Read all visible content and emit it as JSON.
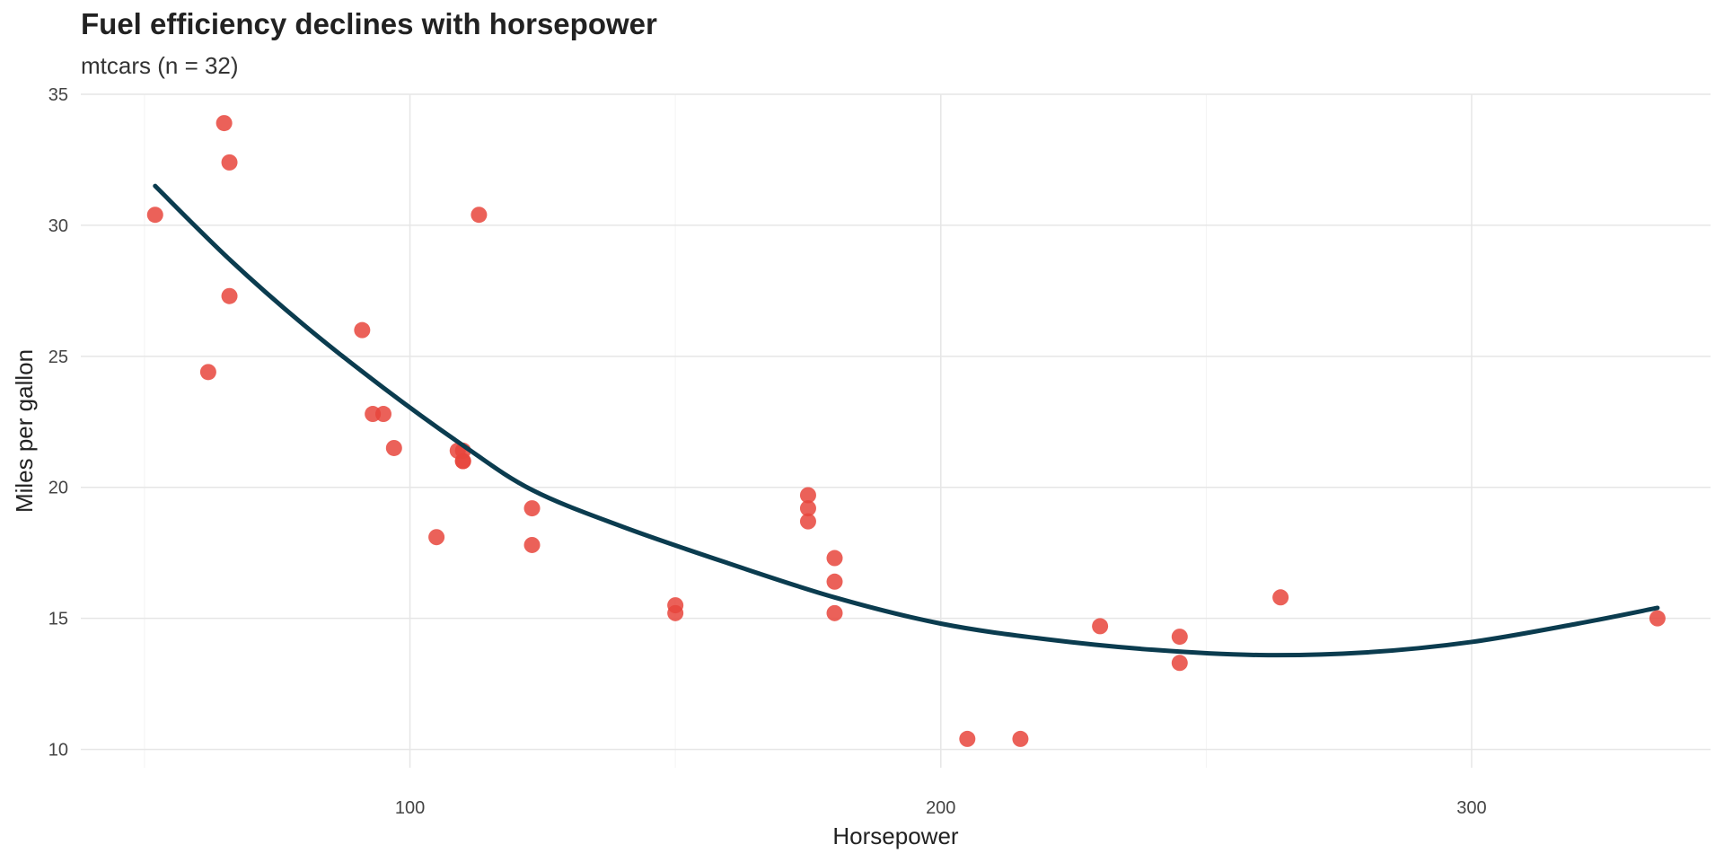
{
  "chart_data": {
    "type": "scatter",
    "title": "Fuel efficiency declines with horsepower",
    "subtitle": "mtcars (n = 32)",
    "xlabel": "Horsepower",
    "ylabel": "Miles per gallon",
    "xlim": [
      38,
      345
    ],
    "ylim": [
      9.3,
      35
    ],
    "x_ticks": [
      100,
      200,
      300
    ],
    "y_ticks": [
      10,
      15,
      20,
      25,
      30,
      35
    ],
    "grid": true,
    "point_color": "#E8453C",
    "line_color": "#0B3C4F",
    "points": [
      {
        "x": 110,
        "y": 21.0
      },
      {
        "x": 110,
        "y": 21.0
      },
      {
        "x": 93,
        "y": 22.8
      },
      {
        "x": 110,
        "y": 21.4
      },
      {
        "x": 175,
        "y": 18.7
      },
      {
        "x": 105,
        "y": 18.1
      },
      {
        "x": 245,
        "y": 14.3
      },
      {
        "x": 62,
        "y": 24.4
      },
      {
        "x": 95,
        "y": 22.8
      },
      {
        "x": 123,
        "y": 19.2
      },
      {
        "x": 123,
        "y": 17.8
      },
      {
        "x": 180,
        "y": 16.4
      },
      {
        "x": 180,
        "y": 17.3
      },
      {
        "x": 180,
        "y": 15.2
      },
      {
        "x": 205,
        "y": 10.4
      },
      {
        "x": 215,
        "y": 10.4
      },
      {
        "x": 230,
        "y": 14.7
      },
      {
        "x": 66,
        "y": 32.4
      },
      {
        "x": 52,
        "y": 30.4
      },
      {
        "x": 65,
        "y": 33.9
      },
      {
        "x": 97,
        "y": 21.5
      },
      {
        "x": 150,
        "y": 15.5
      },
      {
        "x": 150,
        "y": 15.2
      },
      {
        "x": 245,
        "y": 13.3
      },
      {
        "x": 175,
        "y": 19.2
      },
      {
        "x": 66,
        "y": 27.3
      },
      {
        "x": 91,
        "y": 26.0
      },
      {
        "x": 113,
        "y": 30.4
      },
      {
        "x": 264,
        "y": 15.8
      },
      {
        "x": 175,
        "y": 19.7
      },
      {
        "x": 335,
        "y": 15.0
      },
      {
        "x": 109,
        "y": 21.4
      }
    ],
    "smooth_line": [
      {
        "x": 52,
        "y": 31.5
      },
      {
        "x": 66,
        "y": 28.7
      },
      {
        "x": 80,
        "y": 26.2
      },
      {
        "x": 95,
        "y": 23.8
      },
      {
        "x": 110,
        "y": 21.6
      },
      {
        "x": 123,
        "y": 19.9
      },
      {
        "x": 140,
        "y": 18.5
      },
      {
        "x": 160,
        "y": 17.1
      },
      {
        "x": 180,
        "y": 15.8
      },
      {
        "x": 200,
        "y": 14.8
      },
      {
        "x": 220,
        "y": 14.2
      },
      {
        "x": 240,
        "y": 13.8
      },
      {
        "x": 260,
        "y": 13.6
      },
      {
        "x": 280,
        "y": 13.7
      },
      {
        "x": 300,
        "y": 14.1
      },
      {
        "x": 320,
        "y": 14.8
      },
      {
        "x": 335,
        "y": 15.4
      }
    ]
  }
}
